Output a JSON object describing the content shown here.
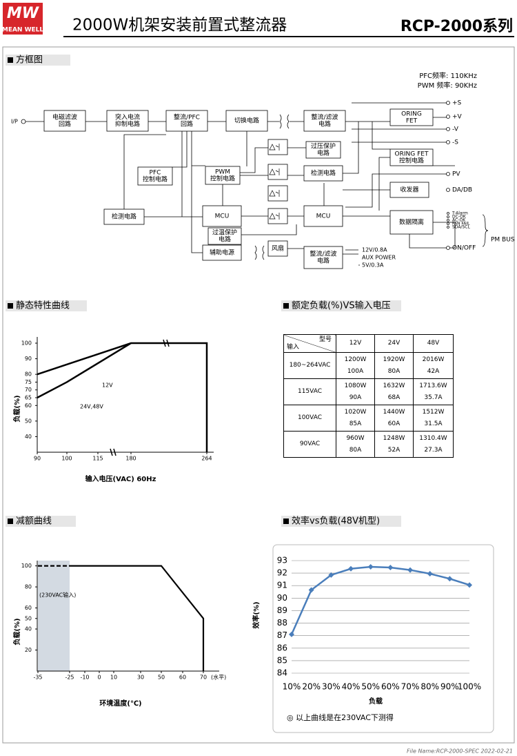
{
  "header": {
    "logo_mark": "MW",
    "logo_name": "MEAN WELL",
    "title": "2000W机架安装前置式整流器",
    "series": "RCP-2000系列"
  },
  "block_diagram": {
    "title": "方框图",
    "freq_notes": [
      "PFC频率: 110KHz",
      "PWM 频率: 90KHz"
    ],
    "input_label": "I/P",
    "nodes": [
      {
        "label": [
          "电磁滤波",
          "回路"
        ]
      },
      {
        "label": [
          "突入电流",
          "抑制电路"
        ]
      },
      {
        "label": [
          "整流/PFC",
          "回路"
        ]
      },
      {
        "label": [
          "切换电路"
        ]
      },
      {
        "label": [
          "整流/滤波",
          "电路"
        ]
      },
      {
        "label": [
          "ORING",
          "FET"
        ]
      },
      {
        "label": [
          "ORING FET",
          "控制电路"
        ]
      },
      {
        "label": [
          "过压保护",
          "电路"
        ]
      },
      {
        "label": [
          "检测电路"
        ]
      },
      {
        "label": [
          "PWM",
          "控制电路"
        ]
      },
      {
        "label": [
          "PFC",
          "控制电路"
        ]
      },
      {
        "label": [
          "检测电路"
        ]
      },
      {
        "label": [
          "MCU"
        ]
      },
      {
        "label": [
          "MCU"
        ]
      },
      {
        "label": [
          "收发器"
        ]
      },
      {
        "label": [
          "数据隔离"
        ]
      },
      {
        "label": [
          "过温保护",
          "电路"
        ]
      },
      {
        "label": [
          "辅助电源"
        ]
      },
      {
        "label": [
          "风扇"
        ]
      },
      {
        "label": [
          "整流/滤波",
          "电路"
        ]
      }
    ],
    "outputs": [
      "+S",
      "+V",
      "-V",
      "-S",
      "PV",
      "DA/DB",
      "T-Alarm",
      "DC-OK",
      "AC-OK",
      "FAN FAIL",
      "SDA/SCL",
      "ON/OFF"
    ],
    "bus_label": "PM BUS",
    "aux_outputs": [
      "12V/0.8A",
      "AUX POWER",
      "5V/0.3A"
    ]
  },
  "rated_load_table": {
    "title": "额定负载(%)VS输入电压",
    "header": {
      "model": "型号",
      "input": "输入",
      "columns": [
        "12V",
        "24V",
        "48V"
      ]
    },
    "rows": [
      {
        "input": "180~264VAC",
        "cells": [
          [
            "1200W",
            "100A"
          ],
          [
            "1920W",
            "80A"
          ],
          [
            "2016W",
            "42A"
          ]
        ]
      },
      {
        "input": "115VAC",
        "cells": [
          [
            "1080W",
            "90A"
          ],
          [
            "1632W",
            "68A"
          ],
          [
            "1713.6W",
            "35.7A"
          ]
        ]
      },
      {
        "input": "100VAC",
        "cells": [
          [
            "1020W",
            "85A"
          ],
          [
            "1440W",
            "60A"
          ],
          [
            "1512W",
            "31.5A"
          ]
        ]
      },
      {
        "input": "90VAC",
        "cells": [
          [
            "960W",
            "80A"
          ],
          [
            "1248W",
            "52A"
          ],
          [
            "1310.4W",
            "27.3A"
          ]
        ]
      }
    ]
  },
  "chart_data": [
    {
      "type": "line",
      "title": "静态特性曲线",
      "x_label": "输入电压(VAC) 60Hz",
      "y_label": "负载(%)",
      "xlim": [
        90,
        264
      ],
      "xticks": [
        90,
        100,
        115,
        180,
        264
      ],
      "ylim": [
        30,
        104
      ],
      "yticks": [
        40,
        50,
        60,
        65,
        70,
        75,
        80,
        90,
        100
      ],
      "series": [
        {
          "name": "12V",
          "color": "#000000",
          "x": [
            90,
            180,
            264,
            264
          ],
          "values": [
            80,
            100,
            100,
            30
          ]
        },
        {
          "name": "24V,48V",
          "color": "#000000",
          "x": [
            90,
            100,
            180
          ],
          "values": [
            65,
            75,
            100
          ]
        }
      ]
    },
    {
      "type": "line",
      "title": "减额曲线",
      "x_label": "环境温度(℃)",
      "x_unit": "(水平)",
      "y_label": "负载(%)",
      "annotation": "(230VAC输入)",
      "xlim": [
        -35,
        70
      ],
      "xticks": [
        -35,
        -25,
        -10,
        0,
        10,
        30,
        50,
        60,
        70
      ],
      "ylim": [
        0,
        105
      ],
      "yticks": [
        20,
        40,
        50,
        60,
        80,
        100
      ],
      "series": [
        {
          "color": "#000000",
          "dashed": true,
          "x": [
            -35,
            -25
          ],
          "values": [
            100,
            100
          ]
        },
        {
          "color": "#000000",
          "x": [
            -25,
            50,
            70,
            70
          ],
          "values": [
            100,
            100,
            50,
            0
          ]
        }
      ]
    },
    {
      "type": "line",
      "title": "效率vs负载(48V机型)",
      "x_label": "负载",
      "y_label": "效率(%)",
      "categories": [
        "10%",
        "20%",
        "30%",
        "40%",
        "50%",
        "60%",
        "70%",
        "80%",
        "90%",
        "100%"
      ],
      "ylim": [
        84,
        93
      ],
      "yticks": [
        84,
        85,
        86,
        87,
        88,
        89,
        90,
        91,
        92,
        93
      ],
      "grid": true,
      "series": [
        {
          "color": "#4a7ebb",
          "values": [
            87.1,
            90.65,
            91.85,
            92.35,
            92.5,
            92.45,
            92.25,
            91.95,
            91.55,
            91.05
          ]
        }
      ],
      "note": "◎ 以上曲线是在230VAC下测得"
    }
  ],
  "footer": "File Name:RCP-2000-SPEC 2022-02-21"
}
